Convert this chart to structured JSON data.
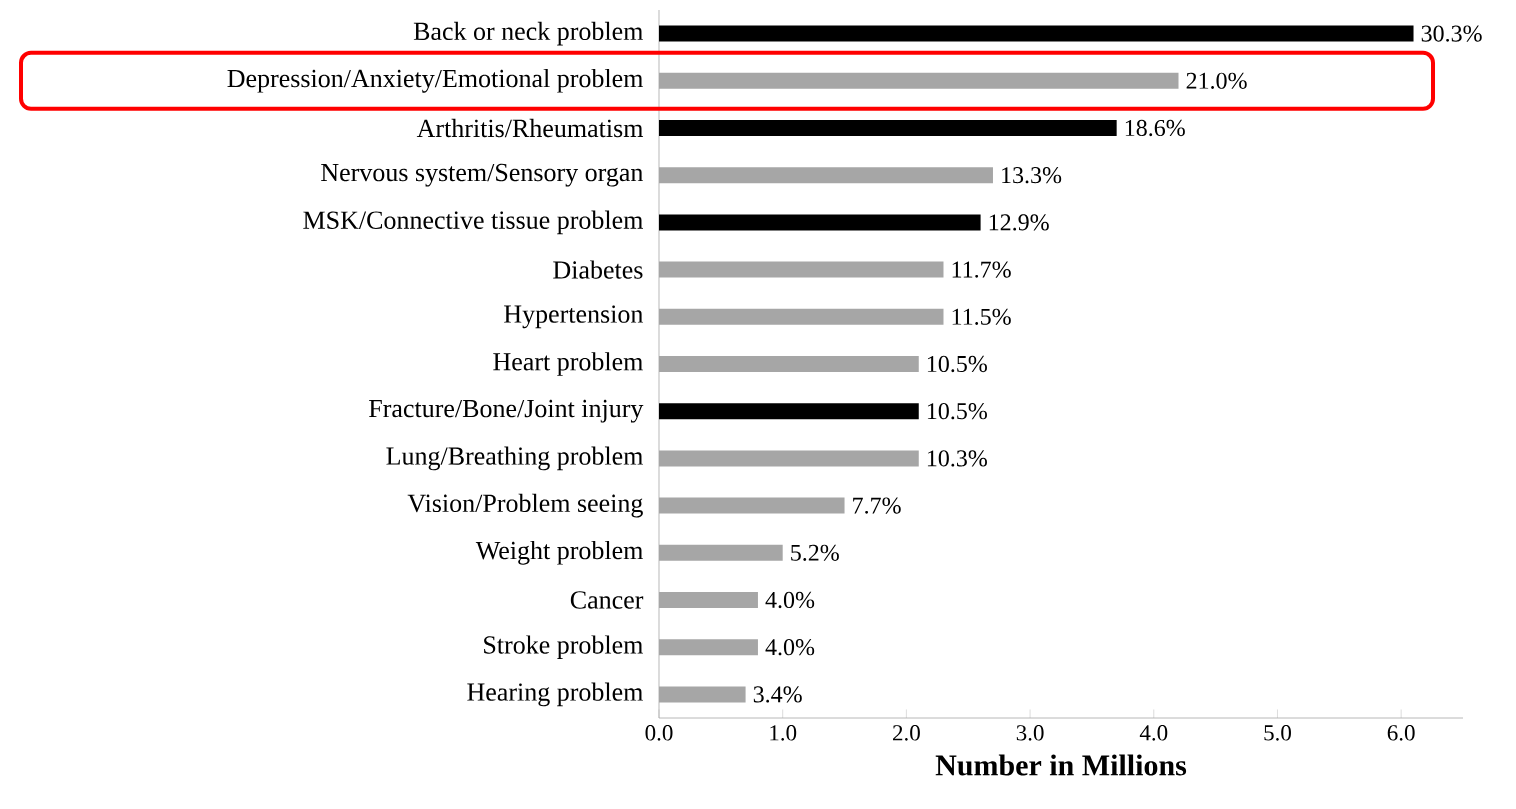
{
  "chart_data": {
    "type": "bar",
    "orientation": "horizontal",
    "xlabel": "Number in Millions",
    "categories": [
      "Back or neck problem",
      "Depression/Anxiety/Emotional problem",
      "Arthritis/Rheumatism",
      "Nervous system/Sensory organ",
      "MSK/Connective tissue problem",
      "Diabetes",
      "Hypertension",
      "Heart problem",
      "Fracture/Bone/Joint injury",
      "Lung/Breathing problem",
      "Vision/Problem seeing",
      "Weight problem",
      "Cancer",
      "Stroke problem",
      "Hearing problem"
    ],
    "values": [
      6.1,
      4.2,
      3.7,
      2.7,
      2.6,
      2.3,
      2.3,
      2.1,
      2.1,
      2.1,
      1.5,
      1.0,
      0.8,
      0.8,
      0.7
    ],
    "annotations": [
      {
        "text": "30.3%",
        "x": 6.1,
        "y": "Back or neck problem"
      },
      {
        "text": "21.0%",
        "x": 4.2,
        "y": "Depression/Anxiety/Emotional problem"
      },
      {
        "text": "18.6%",
        "x": 3.7,
        "y": "Arthritis/Rheumatism"
      },
      {
        "text": "13.3%",
        "x": 2.7,
        "y": "Nervous system/Sensory organ"
      },
      {
        "text": "12.9%",
        "x": 2.6,
        "y": "MSK/Connective tissue problem"
      },
      {
        "text": "11.7%",
        "x": 2.3,
        "y": "Diabetes"
      },
      {
        "text": "11.5%",
        "x": 2.3,
        "y": "Hypertension"
      },
      {
        "text": "10.5%",
        "x": 2.1,
        "y": "Heart problem"
      },
      {
        "text": "10.5%",
        "x": 2.1,
        "y": "Fracture/Bone/Joint injury"
      },
      {
        "text": "10.3%",
        "x": 2.1,
        "y": "Lung/Breathing problem"
      },
      {
        "text": "7.7%",
        "x": 1.5,
        "y": "Vision/Problem seeing"
      },
      {
        "text": "5.2%",
        "x": 1.0,
        "y": "Weight problem"
      },
      {
        "text": "4.0%",
        "x": 0.8,
        "y": "Cancer"
      },
      {
        "text": "4.0%",
        "x": 0.8,
        "y": "Stroke problem"
      },
      {
        "text": "3.4%",
        "x": 0.7,
        "y": "Hearing problem"
      }
    ],
    "colors": [
      "#000000",
      "#a6a6a6",
      "#000000",
      "#a6a6a6",
      "#000000",
      "#a6a6a6",
      "#a6a6a6",
      "#a6a6a6",
      "#000000",
      "#a6a6a6",
      "#a6a6a6",
      "#a6a6a6",
      "#a6a6a6",
      "#a6a6a6",
      "#a6a6a6"
    ],
    "xlim": [
      0,
      6.5
    ],
    "xticks": [
      {
        "value": 0,
        "label": "0.0"
      },
      {
        "value": 1,
        "label": "1.0"
      },
      {
        "value": 2,
        "label": "2.0"
      },
      {
        "value": 3,
        "label": "3.0"
      },
      {
        "value": 4,
        "label": "4.0"
      },
      {
        "value": 5,
        "label": "5.0"
      },
      {
        "value": 6,
        "label": "6.0"
      }
    ]
  }
}
